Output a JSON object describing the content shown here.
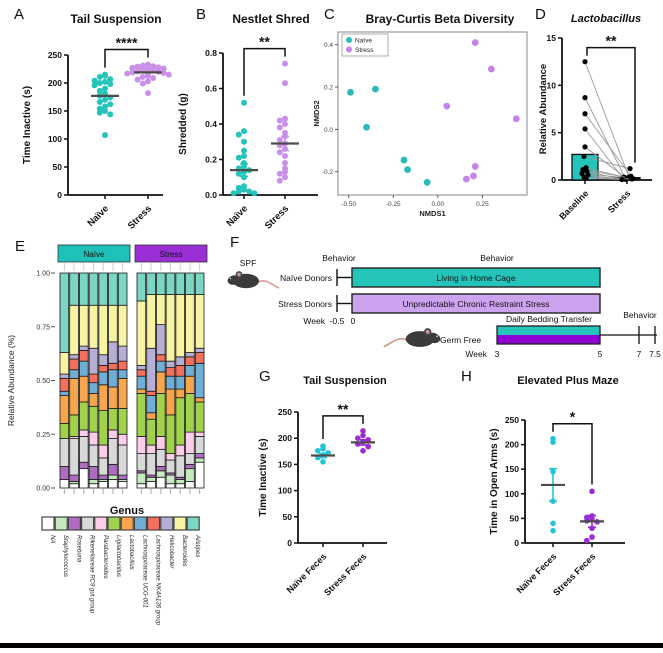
{
  "figure": {
    "background": "#ffffff",
    "panels": {
      "a": {
        "letter": "A",
        "title": "Tail Suspension",
        "significance": "****"
      },
      "b": {
        "letter": "B",
        "title": "Nestlet Shred",
        "significance": "**"
      },
      "c": {
        "letter": "C",
        "title": "Bray-Curtis Beta Diversity"
      },
      "d": {
        "letter": "D",
        "title": "Lactobacillus",
        "significance": "**"
      },
      "e": {
        "letter": "E"
      },
      "f": {
        "letter": "F"
      },
      "g": {
        "letter": "G",
        "title": "Tail Suspension",
        "significance": "**"
      },
      "h": {
        "letter": "H",
        "title": "Elevated Plus Maze",
        "significance": "*"
      }
    },
    "colors": {
      "teal": "#25C4BB",
      "light_purple": "#C98FE9",
      "vivid_purple": "#9C2BD6",
      "cyan": "#20C6D7",
      "ucrs_purple": "#CBA3EF",
      "bedding_purple": "#8F00D2",
      "mean_line": "#4d4d4d",
      "axis": "#111111"
    }
  },
  "chart_data": [
    {
      "id": "panelA",
      "type": "scatter",
      "title": "Tail Suspension",
      "significance": "****",
      "ylabel": "Time Inactive (s)",
      "ylim": [
        0,
        250
      ],
      "yticks": [
        0,
        50,
        100,
        150,
        200,
        250
      ],
      "categories": [
        "Naïve",
        "Stress"
      ],
      "series": [
        {
          "name": "Naïve",
          "color": "#25C4BB",
          "mean": 177,
          "sem": 0,
          "values": [
            215,
            213,
            211,
            207,
            204,
            202,
            200,
            198,
            196,
            190,
            186,
            181,
            177,
            174,
            170,
            166,
            162,
            158,
            154,
            150,
            147,
            144,
            107
          ]
        },
        {
          "name": "Stress",
          "color": "#C98FE9",
          "mean": 219,
          "sem": 0,
          "values": [
            233,
            231,
            230,
            229,
            228,
            227,
            226,
            225,
            224,
            222,
            221,
            220,
            219,
            218,
            217,
            215,
            213,
            211,
            209,
            206,
            203,
            199,
            182
          ]
        }
      ]
    },
    {
      "id": "panelB",
      "type": "scatter",
      "title": "Nestlet Shred",
      "significance": "**",
      "ylabel": "Shredded (g)",
      "ylim": [
        0,
        0.8
      ],
      "yticks": [
        {
          "v": 0,
          "label": "0.0"
        },
        {
          "v": 0.2,
          "label": "0.2"
        },
        {
          "v": 0.4,
          "label": "0.4"
        },
        {
          "v": 0.6,
          "label": "0.6"
        },
        {
          "v": 0.8,
          "label": "0.8"
        }
      ],
      "categories": [
        "Naïve",
        "Stress"
      ],
      "series": [
        {
          "name": "Naïve",
          "color": "#25C4BB",
          "mean": 0.14,
          "sem": 0.035,
          "values": [
            0.52,
            0.36,
            0.34,
            0.3,
            0.25,
            0.22,
            0.21,
            0.18,
            0.16,
            0.15,
            0.14,
            0.13,
            0.12,
            0.1,
            0.05,
            0.04,
            0.03,
            0.02,
            0.02,
            0.01,
            0.01
          ]
        },
        {
          "name": "Stress",
          "color": "#C98FE9",
          "mean": 0.29,
          "sem": 0.04,
          "values": [
            0.74,
            0.63,
            0.43,
            0.42,
            0.4,
            0.38,
            0.35,
            0.33,
            0.31,
            0.29,
            0.28,
            0.26,
            0.24,
            0.22,
            0.18,
            0.15,
            0.13,
            0.12,
            0.1,
            0.08
          ]
        }
      ]
    },
    {
      "id": "panelC",
      "type": "scatter-xy",
      "title": "Bray-Curtis Beta Diversity",
      "xlabel": "NMDS1",
      "ylabel": "NMDS2",
      "xlim": [
        -0.56,
        0.5
      ],
      "ylim": [
        -0.31,
        0.46
      ],
      "xticks": [
        {
          "v": -0.5,
          "label": "-0.50"
        },
        {
          "v": -0.25,
          "label": "-0.25"
        },
        {
          "v": 0,
          "label": "0.00"
        },
        {
          "v": 0.25,
          "label": "0.25"
        }
      ],
      "yticks": [
        {
          "v": -0.2,
          "label": "-0.2"
        },
        {
          "v": 0,
          "label": "0.0"
        },
        {
          "v": 0.2,
          "label": "0.2"
        },
        {
          "v": 0.4,
          "label": "0.4"
        }
      ],
      "legend_position": "top-left",
      "series": [
        {
          "name": "Naïve",
          "color": "#2BB9B9",
          "points": [
            [
              -0.49,
              0.175
            ],
            [
              -0.35,
              0.19
            ],
            [
              -0.4,
              0.01
            ],
            [
              -0.19,
              -0.145
            ],
            [
              -0.17,
              -0.19
            ],
            [
              -0.06,
              -0.25
            ]
          ]
        },
        {
          "name": "Stress",
          "color": "#C584EB",
          "points": [
            [
              0.21,
              0.41
            ],
            [
              0.3,
              0.285
            ],
            [
              0.05,
              0.11
            ],
            [
              0.44,
              0.05
            ],
            [
              0.21,
              -0.175
            ],
            [
              0.2,
              -0.22
            ],
            [
              0.16,
              -0.235
            ]
          ]
        }
      ]
    },
    {
      "id": "panelD",
      "type": "paired-bar",
      "title": "Lactobacillus",
      "significance": "**",
      "ylabel": "Relative Abundance",
      "ylim": [
        0,
        15
      ],
      "yticks": [
        0,
        5,
        10,
        15
      ],
      "categories": [
        "Baseline",
        "Stress"
      ],
      "bar_values": [
        2.7,
        0.25
      ],
      "bar_colors": [
        "#25C4BB",
        "#111111"
      ],
      "pairs": [
        [
          12.5,
          0.3
        ],
        [
          8.7,
          0.25
        ],
        [
          7.0,
          0.4
        ],
        [
          5.4,
          0.2
        ],
        [
          3.5,
          0.15
        ],
        [
          2.5,
          1.2
        ],
        [
          1.3,
          0.3
        ],
        [
          1.1,
          0.15
        ],
        [
          0.9,
          0.1
        ],
        [
          0.7,
          0.2
        ],
        [
          0.5,
          0.05
        ],
        [
          0.3,
          0.1
        ],
        [
          0.2,
          0.05
        ]
      ]
    },
    {
      "id": "panelE",
      "type": "stacked-bar",
      "xlabel": "Genus",
      "ylabel": "Relative Abundance (%)",
      "yticks": [
        {
          "v": 0,
          "label": "0.00"
        },
        {
          "v": 0.25,
          "label": "0.25"
        },
        {
          "v": 0.5,
          "label": "0.50"
        },
        {
          "v": 0.75,
          "label": "0.75"
        },
        {
          "v": 1,
          "label": "1.00"
        }
      ],
      "genera": [
        {
          "name": "NA",
          "color": "#FFFFFF"
        },
        {
          "name": "Staphylococcus",
          "color": "#C7E9C0"
        },
        {
          "name": "Roseburia",
          "color": "#B06CC0"
        },
        {
          "name": "Rikenellaceae RC9 gut group",
          "color": "#D9D9D9"
        },
        {
          "name": "Parabacteroides",
          "color": "#FBCDE9"
        },
        {
          "name": "Ligilactobacillus",
          "color": "#A0D24B"
        },
        {
          "name": "Lactobacillus",
          "color": "#F7A64E"
        },
        {
          "name": "Lachnospiraceae UCG-001",
          "color": "#6FAED6"
        },
        {
          "name": "Lachnospiraceae NK4A136 group",
          "color": "#F4705C"
        },
        {
          "name": "Helicobacter",
          "color": "#B6AED5"
        },
        {
          "name": "Bacteroides",
          "color": "#F7F3A3"
        },
        {
          "name": "Alistipes",
          "color": "#7BD7C4"
        }
      ],
      "facets": [
        {
          "name": "Naïve",
          "color": "#1FC0B7",
          "bars": [
            [
              0.04,
              0.0,
              0.06,
              0.13,
              0.0,
              0.07,
              0.13,
              0.02,
              0.06,
              0.02,
              0.1,
              0.37
            ],
            [
              0.02,
              0.01,
              0.03,
              0.17,
              0.01,
              0.1,
              0.17,
              0.04,
              0.05,
              0.02,
              0.23,
              0.15
            ],
            [
              0.09,
              0.0,
              0.03,
              0.12,
              0.03,
              0.13,
              0.12,
              0.07,
              0.05,
              0.02,
              0.19,
              0.15
            ],
            [
              0.02,
              0.02,
              0.06,
              0.1,
              0.06,
              0.12,
              0.06,
              0.05,
              0.04,
              0.12,
              0.2,
              0.15
            ],
            [
              0.03,
              0.01,
              0.02,
              0.08,
              0.06,
              0.16,
              0.12,
              0.06,
              0.03,
              0.05,
              0.23,
              0.15
            ],
            [
              0.04,
              0.02,
              0.05,
              0.12,
              0.04,
              0.1,
              0.1,
              0.08,
              0.03,
              0.1,
              0.17,
              0.15
            ],
            [
              0.03,
              0.01,
              0.02,
              0.14,
              0.05,
              0.12,
              0.14,
              0.04,
              0.04,
              0.07,
              0.19,
              0.15
            ]
          ]
        },
        {
          "name": "Stress",
          "color": "#9B2FD6",
          "bars": [
            [
              0.02,
              0.05,
              0.01,
              0.08,
              0.08,
              0.2,
              0.02,
              0.06,
              0.03,
              0.02,
              0.3,
              0.13
            ],
            [
              0.03,
              0.02,
              0.01,
              0.1,
              0.04,
              0.12,
              0.03,
              0.08,
              0.02,
              0.2,
              0.25,
              0.1
            ],
            [
              0.05,
              0.03,
              0.02,
              0.08,
              0.06,
              0.2,
              0.1,
              0.05,
              0.03,
              0.14,
              0.14,
              0.1
            ],
            [
              0.02,
              0.04,
              0.01,
              0.06,
              0.03,
              0.18,
              0.12,
              0.06,
              0.04,
              0.03,
              0.31,
              0.1
            ],
            [
              0.02,
              0.02,
              0.01,
              0.1,
              0.05,
              0.22,
              0.04,
              0.06,
              0.05,
              0.04,
              0.29,
              0.1
            ],
            [
              0.03,
              0.06,
              0.02,
              0.05,
              0.1,
              0.18,
              0.08,
              0.05,
              0.04,
              0.02,
              0.27,
              0.1
            ],
            [
              0.12,
              0.02,
              0.02,
              0.08,
              0.02,
              0.14,
              0.02,
              0.16,
              0.05,
              0.02,
              0.25,
              0.1
            ]
          ]
        }
      ]
    },
    {
      "id": "panelF",
      "type": "timeline",
      "spf_label": "SPF",
      "behavior_label_left": "Behavior",
      "behavior_label_top": "Behavior",
      "behavior_label_right": "Behavior",
      "rows": [
        {
          "label": "Naïve Donors",
          "bar_label": "Living in Home Cage",
          "color": "#25C4BB"
        },
        {
          "label": "Stress Donors",
          "bar_label": "Unpredictable Chronic Restraint Stress",
          "color": "#CBA3EF"
        }
      ],
      "week_axis_top": {
        "label": "Week",
        "ticks": [
          "-0.5",
          "0"
        ]
      },
      "transfer": {
        "recipient_label": "Germ Free",
        "bar_label": "Daily Bedding Transfer",
        "colors": [
          "#25C4BB",
          "#8F00D2"
        ]
      },
      "week_axis_bottom": {
        "label": "Week",
        "ticks": [
          "3",
          "5",
          "7",
          "7.5"
        ]
      }
    },
    {
      "id": "panelG",
      "type": "scatter",
      "title": "Tail Suspension",
      "significance": "**",
      "ylabel": "Time Inactive (s)",
      "ylim": [
        0,
        250
      ],
      "yticks": [
        0,
        50,
        100,
        150,
        200,
        250
      ],
      "categories": [
        "Naïve Feces",
        "Stress Feces"
      ],
      "series": [
        {
          "name": "Naïve Feces",
          "color": "#20C6D7",
          "mean": 167,
          "sem": 4,
          "values": [
            185,
            180,
            176,
            172,
            168,
            163,
            155
          ]
        },
        {
          "name": "Stress Feces",
          "color": "#9C2BD6",
          "mean": 192,
          "sem": 5,
          "values": [
            214,
            205,
            200,
            197,
            193,
            189,
            184,
            176
          ]
        }
      ]
    },
    {
      "id": "panelH",
      "type": "scatter",
      "title": "Elevated Plus Maze",
      "significance": "*",
      "ylabel": "Time in Open Arms (s)",
      "ylim": [
        0,
        250
      ],
      "yticks": [
        0,
        50,
        100,
        150,
        200,
        250
      ],
      "categories": [
        "Naïve Feces",
        "Stress Feces"
      ],
      "series": [
        {
          "name": "Naïve Feces",
          "color": "#20C6D7",
          "mean": 118,
          "sem": 33,
          "values": [
            212,
            205,
            145,
            85,
            40,
            25
          ]
        },
        {
          "name": "Stress Feces",
          "color": "#9C2BD6",
          "mean": 44,
          "sem": 12,
          "values": [
            105,
            55,
            52,
            48,
            45,
            43,
            30,
            12,
            5
          ]
        }
      ]
    }
  ]
}
